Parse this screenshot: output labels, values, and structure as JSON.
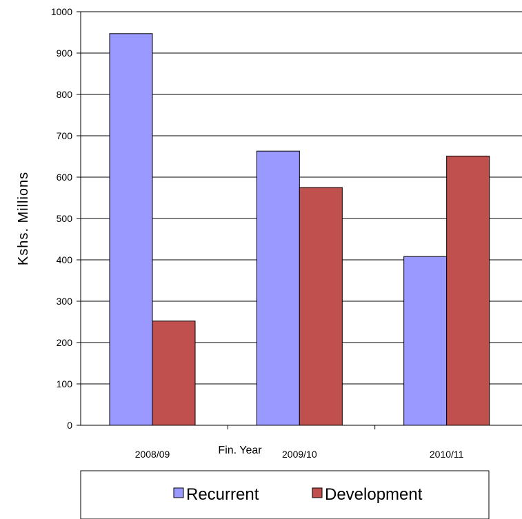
{
  "chart_data": {
    "type": "bar",
    "categories": [
      "2008/09",
      "2009/10",
      "2010/11"
    ],
    "series": [
      {
        "name": "Recurrent",
        "values": [
          947,
          663,
          408
        ],
        "color": "#9999ff"
      },
      {
        "name": "Development",
        "values": [
          252,
          575,
          651
        ],
        "color": "#c0504d"
      }
    ],
    "xlabel": "Fin. Year",
    "ylabel": "Kshs. Millions",
    "ylim": [
      0,
      1000
    ],
    "yticks": [
      0,
      100,
      200,
      300,
      400,
      500,
      600,
      700,
      800,
      900,
      1000
    ],
    "grid": true,
    "legend": "bottom"
  }
}
